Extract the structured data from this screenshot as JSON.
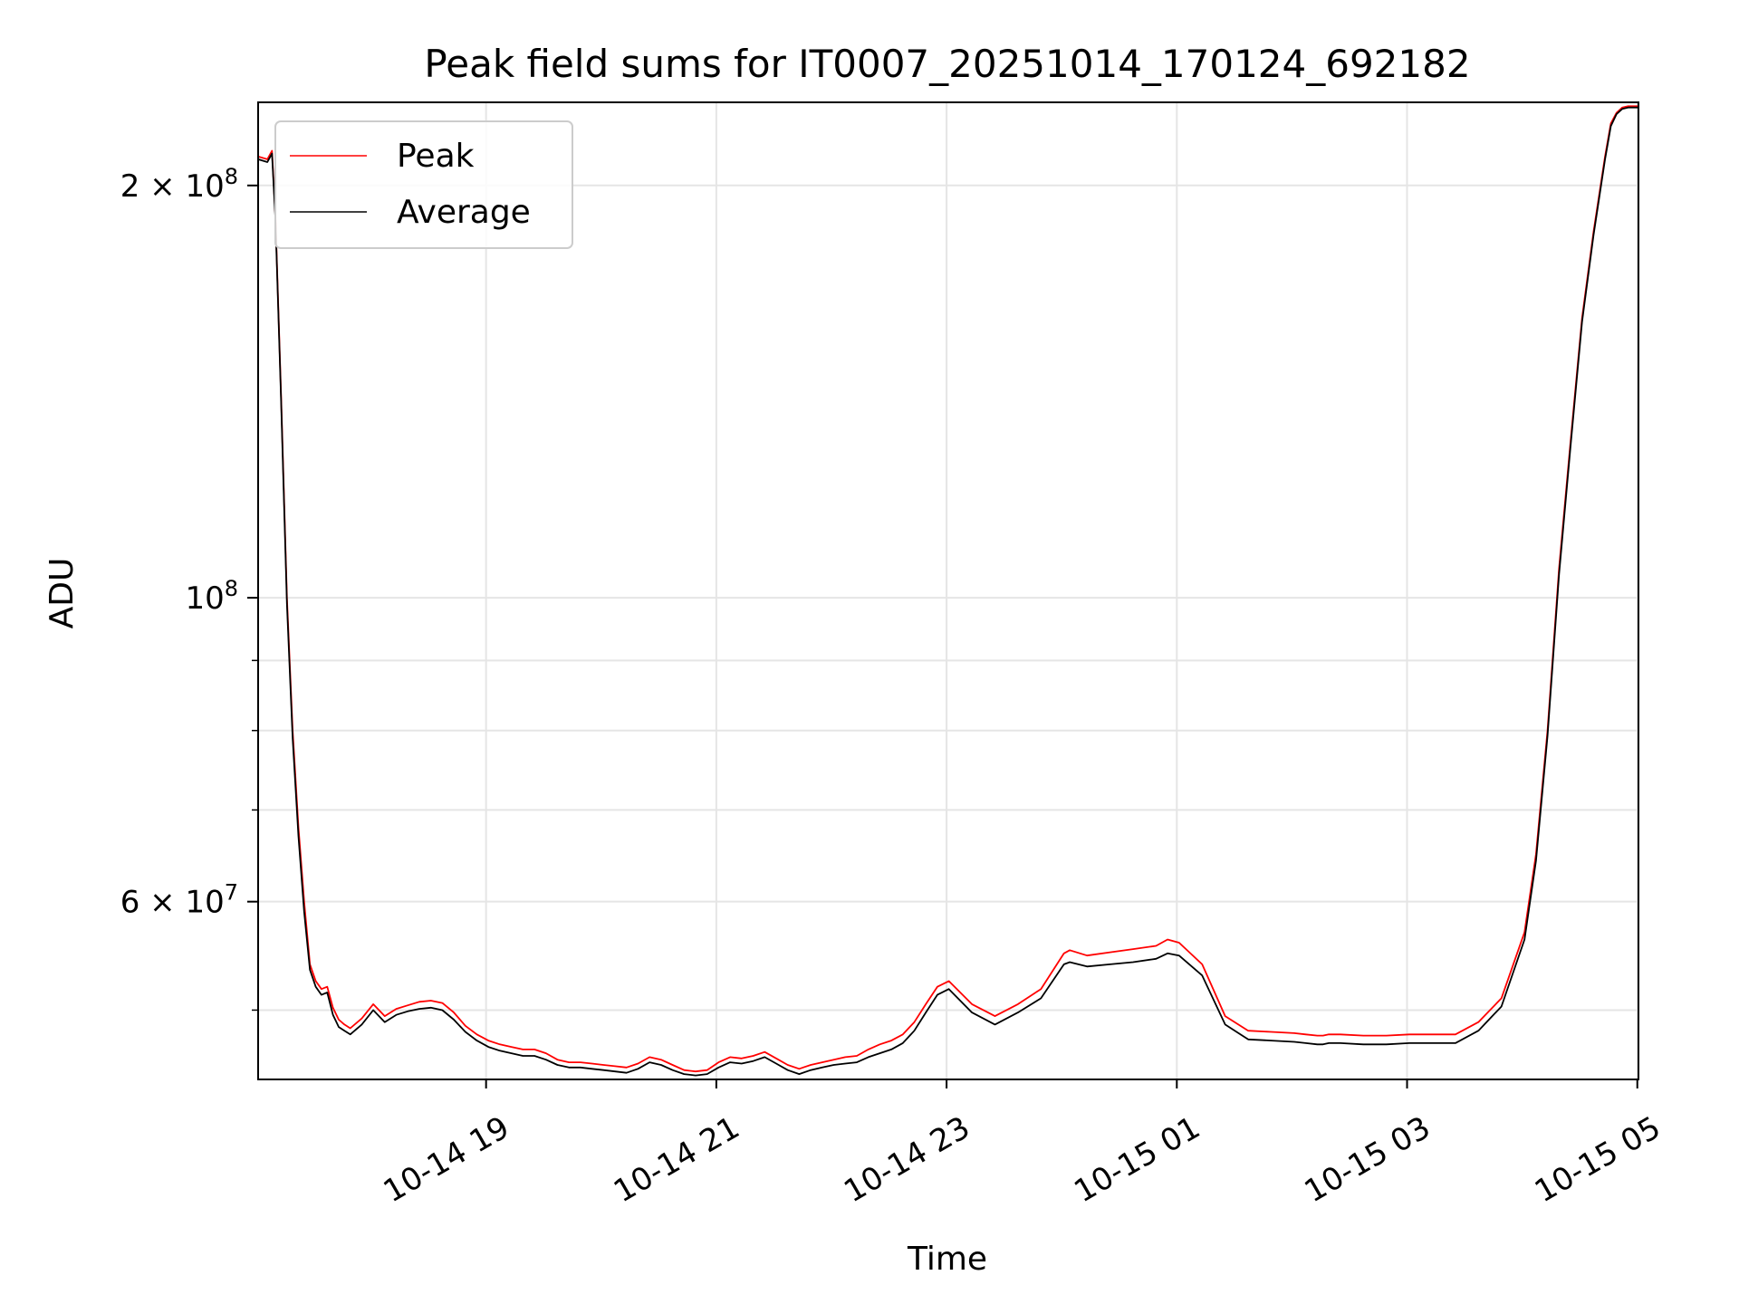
{
  "chart_data": {
    "type": "line",
    "title": "Peak field sums for IT0007_20251014_170124_692182",
    "xlabel": "Time",
    "ylabel": "ADU",
    "yscale": "log",
    "x_unit": "hours since 10-14 17:01",
    "xlim": [
      0,
      11.99
    ],
    "ylim": [
      44500000,
      230000000
    ],
    "x_ticks": [
      {
        "x": 1.98,
        "label": "10-14 19"
      },
      {
        "x": 3.98,
        "label": "10-14 21"
      },
      {
        "x": 5.98,
        "label": "10-14 23"
      },
      {
        "x": 7.98,
        "label": "10-15 01"
      },
      {
        "x": 9.98,
        "label": "10-15 03"
      },
      {
        "x": 11.98,
        "label": "10-15 05"
      }
    ],
    "y_ticks_major": [
      {
        "y": 200000000,
        "label": "2 × 10",
        "exp": "8"
      },
      {
        "y": 100000000,
        "label": "10",
        "exp": "8"
      },
      {
        "y": 60000000,
        "label": "6 × 10",
        "exp": "7"
      }
    ],
    "y_ticks_minor": [
      50000000,
      70000000,
      80000000,
      90000000
    ],
    "grid": true,
    "legend": {
      "position": "top-left",
      "entries": [
        {
          "name": "Peak",
          "color": "#ff0000"
        },
        {
          "name": "Average",
          "color": "#000000"
        }
      ]
    },
    "series": [
      {
        "name": "Peak",
        "color": "#ff0000",
        "x": [
          0.0,
          0.08,
          0.12,
          0.15,
          0.2,
          0.25,
          0.3,
          0.35,
          0.4,
          0.45,
          0.5,
          0.55,
          0.6,
          0.65,
          0.7,
          0.75,
          0.8,
          0.9,
          1.0,
          1.1,
          1.2,
          1.3,
          1.4,
          1.5,
          1.6,
          1.7,
          1.8,
          1.9,
          2.0,
          2.1,
          2.2,
          2.3,
          2.4,
          2.5,
          2.6,
          2.7,
          2.8,
          2.9,
          3.0,
          3.1,
          3.2,
          3.3,
          3.4,
          3.5,
          3.6,
          3.7,
          3.8,
          3.9,
          4.0,
          4.1,
          4.2,
          4.3,
          4.4,
          4.5,
          4.6,
          4.7,
          4.8,
          4.9,
          5.0,
          5.1,
          5.2,
          5.3,
          5.4,
          5.5,
          5.6,
          5.7,
          5.8,
          5.9,
          6.0,
          6.2,
          6.4,
          6.6,
          6.8,
          7.0,
          7.05,
          7.2,
          7.4,
          7.6,
          7.8,
          7.9,
          8.0,
          8.2,
          8.4,
          8.6,
          8.8,
          9.0,
          9.1,
          9.2,
          9.25,
          9.3,
          9.4,
          9.6,
          9.8,
          10.0,
          10.2,
          10.4,
          10.6,
          10.8,
          11.0,
          11.1,
          11.2,
          11.3,
          11.4,
          11.5,
          11.6,
          11.7,
          11.75,
          11.8,
          11.85,
          11.9,
          11.99
        ],
        "values": [
          210000000,
          209000000,
          212000000,
          190000000,
          140000000,
          100000000,
          80000000,
          68000000,
          60000000,
          54000000,
          52500000,
          51800000,
          52000000,
          50200000,
          49200000,
          48800000,
          48500000,
          49300000,
          50500000,
          49500000,
          50100000,
          50400000,
          50700000,
          50800000,
          50600000,
          49800000,
          48700000,
          48000000,
          47500000,
          47200000,
          47000000,
          46800000,
          46800000,
          46500000,
          46000000,
          45800000,
          45800000,
          45700000,
          45600000,
          45500000,
          45400000,
          45700000,
          46200000,
          46000000,
          45600000,
          45200000,
          45100000,
          45200000,
          45800000,
          46200000,
          46100000,
          46300000,
          46600000,
          46100000,
          45600000,
          45300000,
          45600000,
          45800000,
          46000000,
          46200000,
          46300000,
          46800000,
          47200000,
          47500000,
          48000000,
          49000000,
          50500000,
          52000000,
          52500000,
          50500000,
          49500000,
          50500000,
          51800000,
          55000000,
          55300000,
          54800000,
          55100000,
          55400000,
          55700000,
          56300000,
          56000000,
          54000000,
          49500000,
          48300000,
          48200000,
          48100000,
          48000000,
          47900000,
          47900000,
          48000000,
          48000000,
          47900000,
          47900000,
          48000000,
          48000000,
          48000000,
          49000000,
          51000000,
          57000000,
          65000000,
          80000000,
          105000000,
          130000000,
          160000000,
          185000000,
          210000000,
          222000000,
          226000000,
          228000000,
          228500000,
          228500000
        ]
      },
      {
        "name": "Average",
        "color": "#000000",
        "x": [
          0.0,
          0.08,
          0.12,
          0.15,
          0.2,
          0.25,
          0.3,
          0.35,
          0.4,
          0.45,
          0.5,
          0.55,
          0.6,
          0.65,
          0.7,
          0.75,
          0.8,
          0.9,
          1.0,
          1.1,
          1.2,
          1.3,
          1.4,
          1.5,
          1.6,
          1.7,
          1.8,
          1.9,
          2.0,
          2.1,
          2.2,
          2.3,
          2.4,
          2.5,
          2.6,
          2.7,
          2.8,
          2.9,
          3.0,
          3.1,
          3.2,
          3.3,
          3.4,
          3.5,
          3.6,
          3.7,
          3.8,
          3.9,
          4.0,
          4.1,
          4.2,
          4.3,
          4.4,
          4.5,
          4.6,
          4.7,
          4.8,
          4.9,
          5.0,
          5.1,
          5.2,
          5.3,
          5.4,
          5.5,
          5.6,
          5.7,
          5.8,
          5.9,
          6.0,
          6.2,
          6.4,
          6.6,
          6.8,
          7.0,
          7.05,
          7.2,
          7.4,
          7.6,
          7.8,
          7.9,
          8.0,
          8.2,
          8.4,
          8.6,
          8.8,
          9.0,
          9.1,
          9.2,
          9.25,
          9.3,
          9.4,
          9.6,
          9.8,
          10.0,
          10.2,
          10.4,
          10.6,
          10.8,
          11.0,
          11.1,
          11.2,
          11.3,
          11.4,
          11.5,
          11.6,
          11.7,
          11.75,
          11.8,
          11.85,
          11.9,
          11.99
        ],
        "values": [
          209000000,
          208000000,
          211000000,
          189000000,
          139000000,
          99000000,
          79000000,
          67000000,
          59000000,
          53500000,
          52000000,
          51300000,
          51500000,
          49600000,
          48600000,
          48300000,
          48000000,
          48800000,
          50000000,
          49000000,
          49600000,
          49900000,
          50100000,
          50200000,
          50000000,
          49200000,
          48200000,
          47500000,
          47000000,
          46700000,
          46500000,
          46300000,
          46300000,
          46000000,
          45600000,
          45400000,
          45400000,
          45300000,
          45200000,
          45100000,
          45000000,
          45300000,
          45800000,
          45600000,
          45200000,
          44900000,
          44800000,
          44900000,
          45400000,
          45800000,
          45700000,
          45900000,
          46200000,
          45700000,
          45200000,
          44900000,
          45200000,
          45400000,
          45600000,
          45700000,
          45800000,
          46200000,
          46500000,
          46800000,
          47300000,
          48300000,
          49800000,
          51300000,
          51800000,
          49800000,
          48800000,
          49800000,
          51000000,
          54000000,
          54200000,
          53800000,
          54000000,
          54200000,
          54500000,
          55000000,
          54800000,
          53000000,
          48800000,
          47600000,
          47500000,
          47400000,
          47300000,
          47200000,
          47200000,
          47300000,
          47300000,
          47200000,
          47200000,
          47300000,
          47300000,
          47300000,
          48300000,
          50300000,
          56300000,
          64300000,
          79300000,
          104000000,
          129000000,
          159000000,
          184000000,
          209000000,
          221000000,
          225500000,
          227500000,
          228000000,
          228000000
        ]
      }
    ]
  }
}
